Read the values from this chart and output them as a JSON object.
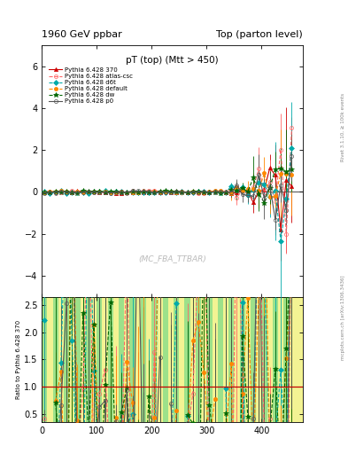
{
  "title_left": "1960 GeV ppbar",
  "title_right": "Top (parton level)",
  "plot_title": "pT (top) (Mtt > 450)",
  "ylabel_ratio": "Ratio to Pythia 6.428 370",
  "watermark": "(MC_FBA_TTBAR)",
  "rivet_label": "Rivet 3.1.10, ≥ 100k events",
  "mcplots_label": "mcplots.cern.ch [arXiv:1306.3436]",
  "xlim": [
    0,
    475
  ],
  "ylim_main": [
    -5.0,
    7.0
  ],
  "ylim_ratio": [
    0.35,
    2.65
  ],
  "yticks_main": [
    -4,
    -2,
    0,
    2,
    4,
    6
  ],
  "yticks_ratio": [
    0.5,
    1.0,
    1.5,
    2.0,
    2.5
  ],
  "xticks": [
    0,
    100,
    200,
    300,
    400
  ],
  "series": [
    {
      "label": "Pythia 6.428 370",
      "color": "#cc0000",
      "linestyle": "-",
      "marker": "^",
      "markersize": 3,
      "linewidth": 0.8,
      "open": false
    },
    {
      "label": "Pythia 6.428 atlas-csc",
      "color": "#ff6666",
      "linestyle": "--",
      "marker": "o",
      "markersize": 3,
      "linewidth": 0.8,
      "open": true
    },
    {
      "label": "Pythia 6.428 d6t",
      "color": "#00aaaa",
      "linestyle": "--",
      "marker": "D",
      "markersize": 3,
      "linewidth": 0.8,
      "open": false
    },
    {
      "label": "Pythia 6.428 default",
      "color": "#ff8800",
      "linestyle": "--",
      "marker": "o",
      "markersize": 3,
      "linewidth": 0.8,
      "open": false
    },
    {
      "label": "Pythia 6.428 dw",
      "color": "#006600",
      "linestyle": "--",
      "marker": "*",
      "markersize": 4,
      "linewidth": 0.8,
      "open": false
    },
    {
      "label": "Pythia 6.428 p0",
      "color": "#555555",
      "linestyle": "-",
      "marker": "o",
      "markersize": 3,
      "linewidth": 0.8,
      "open": true
    }
  ],
  "ratio_band_green": "#88dd88",
  "ratio_band_yellow": "#eeee66",
  "background_color": "#ffffff"
}
